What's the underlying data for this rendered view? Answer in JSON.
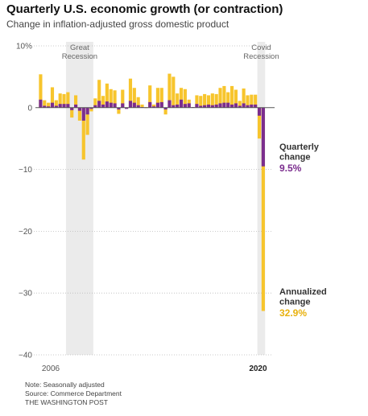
{
  "chart_data": {
    "type": "bar",
    "title": "Quarterly U.S. economic growth (or contraction)",
    "subtitle": "Change in inflation-adjusted gross domestic product",
    "y_unit_label": "10%",
    "ylim": [
      -40,
      10
    ],
    "yticks": [
      10,
      0,
      -10,
      -20,
      -30,
      -40
    ],
    "ytick_labels": [
      "10%",
      "0",
      "−10",
      "−20",
      "−30",
      "−40"
    ],
    "x_start": "2006 Q1",
    "x_end": "2020 Q2",
    "x_tick_labels": [
      "2006",
      "2020"
    ],
    "grid": true,
    "colors": {
      "quarterly": "#7b2d8e",
      "annualized": "#f7c52d",
      "band": "#ebebeb"
    },
    "shaded_periods": [
      {
        "label_lines": [
          "Great",
          "Recession"
        ],
        "start": "2007 Q4",
        "end": "2009 Q2"
      },
      {
        "label_lines": [
          "Covid",
          "Recession"
        ],
        "start": "2020 Q1",
        "end": "2020 Q2"
      }
    ],
    "series": [
      {
        "name": "Quarterly change",
        "values": [
          1.3,
          0.3,
          0.2,
          0.8,
          0.3,
          0.6,
          0.6,
          0.6,
          -0.4,
          0.5,
          -0.5,
          -2.1,
          -1.1,
          -0.2,
          0.4,
          1.1,
          0.5,
          1.0,
          0.8,
          0.7,
          -0.3,
          0.7,
          -0.2,
          1.1,
          0.8,
          0.4,
          0.1,
          0.0,
          0.9,
          0.2,
          0.8,
          0.9,
          -0.3,
          1.2,
          0.4,
          0.5,
          1.3,
          0.6,
          0.7,
          0.1,
          0.6,
          0.3,
          0.4,
          0.5,
          0.4,
          0.5,
          0.7,
          0.8,
          0.8,
          0.5,
          0.7,
          0.3,
          0.7,
          0.4,
          0.5,
          0.5,
          -1.3,
          -9.5
        ]
      },
      {
        "name": "Annualized change",
        "values": [
          5.4,
          1.2,
          0.8,
          3.3,
          1.2,
          2.3,
          2.2,
          2.5,
          -1.6,
          2.0,
          -2.1,
          -8.4,
          -4.4,
          -0.6,
          1.5,
          4.5,
          1.9,
          3.9,
          3.0,
          2.8,
          -1.0,
          2.9,
          -0.1,
          4.7,
          3.2,
          1.7,
          0.5,
          0.1,
          3.6,
          0.5,
          3.2,
          3.2,
          -1.1,
          5.5,
          5.0,
          2.3,
          3.2,
          3.0,
          1.3,
          0.1,
          2.0,
          1.9,
          2.2,
          2.0,
          2.3,
          2.2,
          3.2,
          3.5,
          2.5,
          3.5,
          2.9,
          1.1,
          3.1,
          2.0,
          2.1,
          2.1,
          -5.0,
          -32.9
        ]
      }
    ],
    "annotations": [
      {
        "series": "Quarterly change",
        "label_lines": [
          "Quarterly",
          "change"
        ],
        "value": "9.5%"
      },
      {
        "series": "Annualized change",
        "label_lines": [
          "Annualized",
          "change"
        ],
        "value": "32.9%"
      }
    ]
  },
  "footer": {
    "note": "Note: Seasonally adjusted",
    "source": "Source: Commerce Department",
    "credit": "THE WASHINGTON POST"
  }
}
